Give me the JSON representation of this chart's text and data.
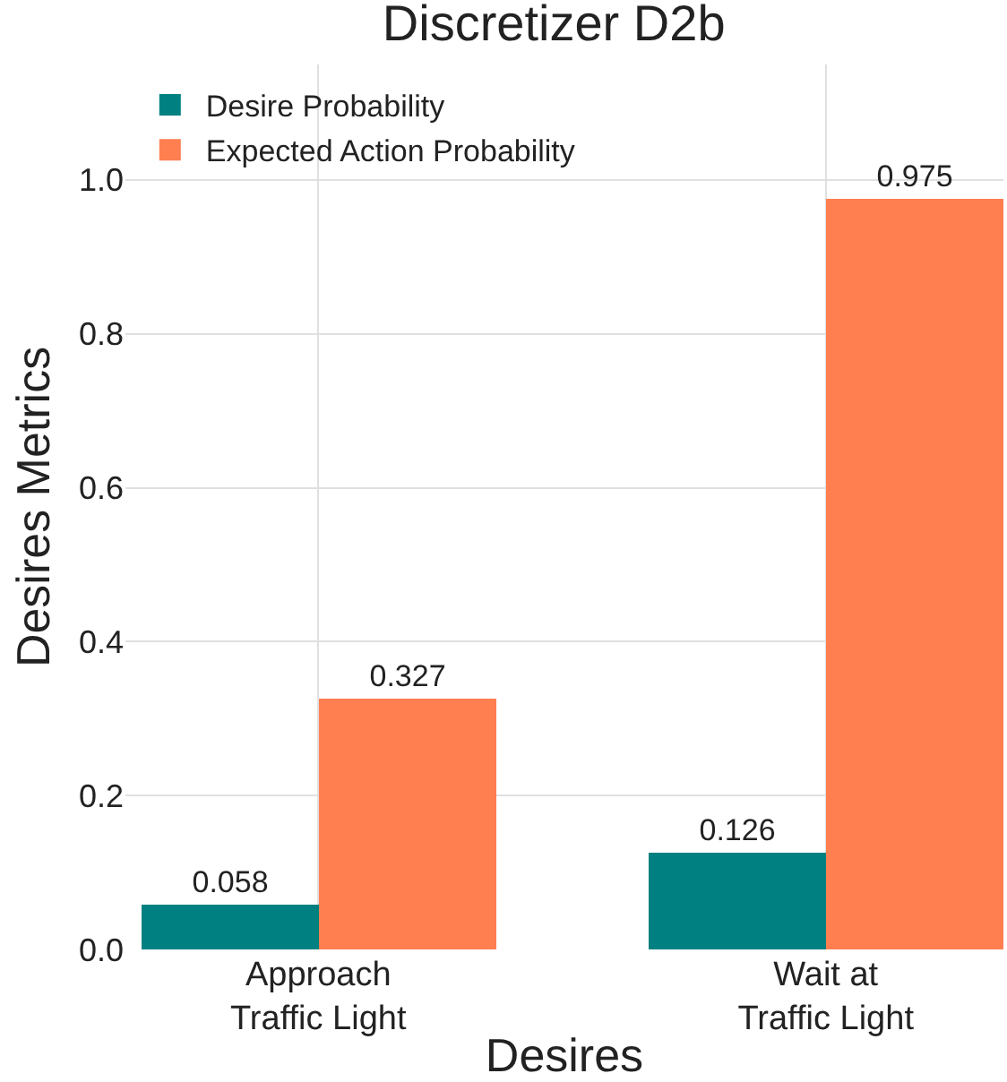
{
  "chart_data": {
    "type": "bar",
    "title": "Discretizer D2b",
    "xlabel": "Desires",
    "ylabel": "Desires Metrics",
    "categories": [
      "Approach\nTraffic Light",
      "Wait at\nTraffic Light"
    ],
    "series": [
      {
        "name": "Desire Probability",
        "color": "#008080",
        "values": [
          0.058,
          0.126
        ]
      },
      {
        "name": "Expected Action Probability",
        "color": "#ff7f50",
        "values": [
          0.327,
          0.975
        ]
      }
    ],
    "ylim": [
      0,
      1.15
    ],
    "yticks": [
      {
        "value": 0,
        "label": "0.0"
      },
      0.2,
      0.4,
      0.6,
      0.8,
      {
        "value": 1,
        "label": "1.0"
      }
    ],
    "grid": true,
    "legend": "top left",
    "data_labels": true
  }
}
